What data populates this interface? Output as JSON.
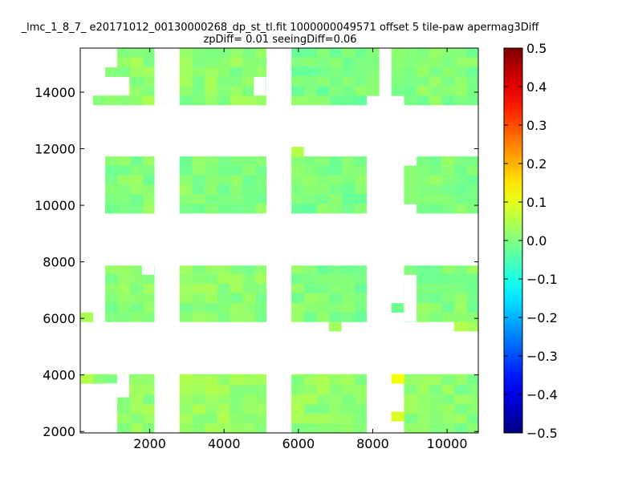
{
  "chart_data": {
    "type": "heatmap",
    "title_line1": "_lmc_1_8_7_ e20171012_00130000268_dp_st_tl.fit 1000000049571 offset 5 tile-paw apermag3Diff",
    "title_line2": "zpDiff= 0.01 seeingDiff=0.06",
    "xlabel": "",
    "ylabel": "",
    "xlim": [
      130,
      10840
    ],
    "ylim": [
      1950,
      15560
    ],
    "x_ticks": [
      "2000",
      "4000",
      "6000",
      "8000",
      "10000"
    ],
    "x_tick_values": [
      2000,
      4000,
      6000,
      8000,
      10000
    ],
    "y_ticks": [
      "2000",
      "4000",
      "6000",
      "8000",
      "10000",
      "12000",
      "14000"
    ],
    "y_tick_values": [
      2000,
      4000,
      6000,
      8000,
      10000,
      12000,
      14000
    ],
    "colorbar": {
      "colormap": "jet",
      "vmin": -0.5,
      "vmax": 0.5,
      "ticks": [
        "0.5",
        "0.4",
        "0.3",
        "0.2",
        "0.1",
        "0.0",
        "−0.1",
        "−0.2",
        "−0.3",
        "−0.4",
        "−0.5"
      ],
      "tick_values": [
        0.5,
        0.4,
        0.3,
        0.2,
        0.1,
        0.0,
        -0.1,
        -0.2,
        -0.3,
        -0.4,
        -0.5
      ]
    },
    "cell_size": [
      340,
      340
    ],
    "blocks": [
      {
        "x0": 800,
        "x1": 2120,
        "y0": 13550,
        "y1": 15560,
        "value": 0.02
      },
      {
        "x0": 470,
        "x1": 800,
        "y0": 13550,
        "y1": 13880,
        "value": 0.01
      },
      {
        "x0": 2800,
        "x1": 5130,
        "y0": 13550,
        "y1": 15560,
        "value": 0.015
      },
      {
        "x0": 5810,
        "x1": 7830,
        "y0": 13550,
        "y1": 15560,
        "value": -0.005
      },
      {
        "x0": 7830,
        "x1": 8170,
        "y0": 13880,
        "y1": 15560,
        "value": 0.0
      },
      {
        "x0": 8840,
        "x1": 10840,
        "y0": 13550,
        "y1": 15560,
        "value": 0.005
      },
      {
        "x0": 8500,
        "x1": 8840,
        "y0": 13880,
        "y1": 15560,
        "value": 0.01
      },
      {
        "x0": 800,
        "x1": 2120,
        "y0": 9720,
        "y1": 11730,
        "value": 0.005
      },
      {
        "x0": 2800,
        "x1": 5130,
        "y0": 9720,
        "y1": 11730,
        "value": 0.005
      },
      {
        "x0": 5810,
        "x1": 7830,
        "y0": 9720,
        "y1": 11730,
        "value": -0.005
      },
      {
        "x0": 5810,
        "x1": 6140,
        "y0": 11730,
        "y1": 12070,
        "value": 0.07
      },
      {
        "x0": 9180,
        "x1": 10840,
        "y0": 9720,
        "y1": 11730,
        "value": 0.0
      },
      {
        "x0": 8840,
        "x1": 9180,
        "y0": 10050,
        "y1": 11400,
        "value": 0.005
      },
      {
        "x0": 800,
        "x1": 2120,
        "y0": 5880,
        "y1": 7870,
        "value": 0.01
      },
      {
        "x0": 150,
        "x1": 470,
        "y0": 5880,
        "y1": 6210,
        "value": 0.03
      },
      {
        "x0": 2800,
        "x1": 5130,
        "y0": 5880,
        "y1": 7870,
        "value": 0.015
      },
      {
        "x0": 5810,
        "x1": 7830,
        "y0": 5880,
        "y1": 7870,
        "value": 0.0
      },
      {
        "x0": 6820,
        "x1": 7150,
        "y0": 5550,
        "y1": 5880,
        "value": 0.04
      },
      {
        "x0": 8840,
        "x1": 10840,
        "y0": 5880,
        "y1": 7870,
        "value": 0.005
      },
      {
        "x0": 8500,
        "x1": 8840,
        "y0": 6210,
        "y1": 6540,
        "value": 0.01
      },
      {
        "x0": 10190,
        "x1": 10840,
        "y0": 5550,
        "y1": 5880,
        "value": 0.05
      },
      {
        "x0": 800,
        "x1": 2120,
        "y0": 1950,
        "y1": 4030,
        "value": 0.02
      },
      {
        "x0": 150,
        "x1": 800,
        "y0": 3700,
        "y1": 4030,
        "value": 0.035
      },
      {
        "x0": 2800,
        "x1": 5130,
        "y0": 1950,
        "y1": 4030,
        "value": 0.025
      },
      {
        "x0": 5810,
        "x1": 7830,
        "y0": 1950,
        "y1": 4030,
        "value": 0.02
      },
      {
        "x0": 8840,
        "x1": 10840,
        "y0": 1950,
        "y1": 4030,
        "value": 0.01
      },
      {
        "x0": 8500,
        "x1": 8840,
        "y0": 3700,
        "y1": 4030,
        "value": 0.1
      },
      {
        "x0": 8500,
        "x1": 8840,
        "y0": 2370,
        "y1": 2700,
        "value": 0.08
      }
    ],
    "empty_cutouts": [
      {
        "x0": 800,
        "x1": 1120,
        "y0": 14880,
        "y1": 15560
      },
      {
        "x0": 800,
        "x1": 1450,
        "y0": 13880,
        "y1": 14540
      },
      {
        "x0": 4800,
        "x1": 5130,
        "y0": 13880,
        "y1": 14540
      },
      {
        "x0": 1790,
        "x1": 2120,
        "y0": 7540,
        "y1": 7870
      },
      {
        "x0": 8840,
        "x1": 9180,
        "y0": 5880,
        "y1": 7540
      },
      {
        "x0": 800,
        "x1": 1120,
        "y0": 1950,
        "y1": 3700
      },
      {
        "x0": 1120,
        "x1": 1450,
        "y0": 3210,
        "y1": 4030
      }
    ],
    "grid": false,
    "legend": "none"
  }
}
